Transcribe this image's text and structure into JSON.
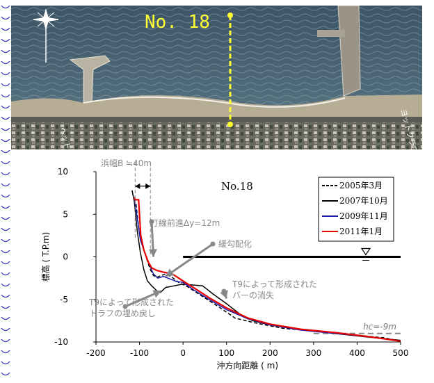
{
  "photo": {
    "station_label": "No. 18",
    "place_labels": [
      "ヘッドランド",
      "ヨットクラブ"
    ]
  },
  "chart_data": {
    "type": "line",
    "station": "No.18",
    "xlabel": "沖方向距離 ( m)",
    "ylabel": "標高 ( T.P.m)",
    "xlim": [
      -200,
      500
    ],
    "ylim": [
      -10,
      10
    ],
    "xticks": [
      -200,
      -100,
      0,
      100,
      200,
      300,
      400,
      500
    ],
    "yticks": [
      10,
      5,
      0,
      -5,
      -10
    ],
    "legend_position": "top-right",
    "series": [
      {
        "name": "2005年3月",
        "color": "#000000",
        "style": "dashed",
        "points": [
          [
            -108,
            6.2
          ],
          [
            -102,
            3.5
          ],
          [
            -95,
            1.6
          ],
          [
            -88,
            0.5
          ],
          [
            -80,
            -0.8
          ],
          [
            -75,
            -1.5
          ],
          [
            -68,
            -2.2
          ],
          [
            -60,
            -2.4
          ],
          [
            -50,
            -2.2
          ],
          [
            -40,
            -2.0
          ],
          [
            -25,
            -2.4
          ],
          [
            -10,
            -3.0
          ],
          [
            10,
            -3.5
          ],
          [
            40,
            -4.5
          ],
          [
            80,
            -5.8
          ],
          [
            120,
            -7.2
          ],
          [
            170,
            -7.8
          ],
          [
            230,
            -8.4
          ],
          [
            300,
            -8.7
          ],
          [
            400,
            -9.2
          ],
          [
            460,
            -9.5
          ],
          [
            500,
            -9.9
          ]
        ]
      },
      {
        "name": "2007年10月",
        "color": "#000000",
        "style": "solid",
        "points": [
          [
            -117,
            7.8
          ],
          [
            -112,
            6.5
          ],
          [
            -105,
            3.0
          ],
          [
            -98,
            0.5
          ],
          [
            -90,
            -1.5
          ],
          [
            -82,
            -2.8
          ],
          [
            -72,
            -3.4
          ],
          [
            -60,
            -4.0
          ],
          [
            -52,
            -4.2
          ],
          [
            -40,
            -3.6
          ],
          [
            -20,
            -3.4
          ],
          [
            0,
            -3.2
          ],
          [
            20,
            -3.3
          ],
          [
            45,
            -3.4
          ],
          [
            70,
            -4.4
          ],
          [
            100,
            -5.5
          ],
          [
            130,
            -6.7
          ],
          [
            160,
            -7.5
          ],
          [
            200,
            -8.0
          ],
          [
            260,
            -8.5
          ],
          [
            330,
            -8.9
          ],
          [
            420,
            -9.4
          ],
          [
            500,
            -9.8
          ]
        ]
      },
      {
        "name": "2009年11月",
        "color": "#1a1aa8",
        "style": "solid",
        "points": [
          [
            -112,
            7.0
          ],
          [
            -105,
            4.5
          ],
          [
            -98,
            2.0
          ],
          [
            -90,
            0.8
          ],
          [
            -82,
            -0.3
          ],
          [
            -75,
            -1.2
          ],
          [
            -68,
            -2.0
          ],
          [
            -58,
            -2.5
          ],
          [
            -45,
            -2.3
          ],
          [
            -30,
            -2.6
          ],
          [
            -15,
            -2.9
          ],
          [
            0,
            -3.0
          ],
          [
            25,
            -3.9
          ],
          [
            60,
            -5.0
          ],
          [
            100,
            -6.2
          ],
          [
            150,
            -7.3
          ],
          [
            200,
            -8.0
          ],
          [
            270,
            -8.6
          ],
          [
            350,
            -9.0
          ],
          [
            430,
            -9.4
          ],
          [
            500,
            -9.9
          ]
        ]
      },
      {
        "name": "2011年1月",
        "color": "#e60000",
        "style": "solid",
        "points": [
          [
            -112,
            7.0
          ],
          [
            -110,
            6.7
          ],
          [
            -102,
            6.7
          ],
          [
            -97,
            2.5
          ],
          [
            -90,
            0.8
          ],
          [
            -80,
            -0.6
          ],
          [
            -72,
            -1.3
          ],
          [
            -60,
            -1.6
          ],
          [
            -45,
            -1.8
          ],
          [
            -25,
            -2.0
          ],
          [
            -10,
            -2.5
          ],
          [
            5,
            -3.0
          ],
          [
            30,
            -3.8
          ],
          [
            60,
            -4.8
          ],
          [
            100,
            -6.0
          ],
          [
            150,
            -7.2
          ],
          [
            200,
            -7.9
          ],
          [
            270,
            -8.5
          ],
          [
            350,
            -8.9
          ],
          [
            430,
            -9.4
          ],
          [
            500,
            -9.9
          ]
        ]
      }
    ],
    "reference_lines": [
      {
        "label": "hc=-9m",
        "x": [
          300,
          500
        ],
        "y": -9.0,
        "style": "dashed",
        "color": "#888888"
      }
    ],
    "mean_sea_level": {
      "y": 0,
      "x": [
        0,
        500
      ]
    },
    "annotations": [
      {
        "text": "浜幅B ≒40m",
        "x_from": -110,
        "x_to": -75
      },
      {
        "text": "汀線前進Δy=12m",
        "arrow_to": [
          -68,
          0
        ]
      },
      {
        "text": "緩勾配化",
        "arrow_to": [
          -40,
          -2.3
        ]
      },
      {
        "text": "T9によって形成された",
        "line2": "バーの消失",
        "arrow_to": [
          100,
          -4.9
        ]
      },
      {
        "text": "T9によって形成された",
        "line2": "トラフの埋め戻し",
        "arrow_to": [
          -50,
          -4.0
        ]
      }
    ]
  }
}
